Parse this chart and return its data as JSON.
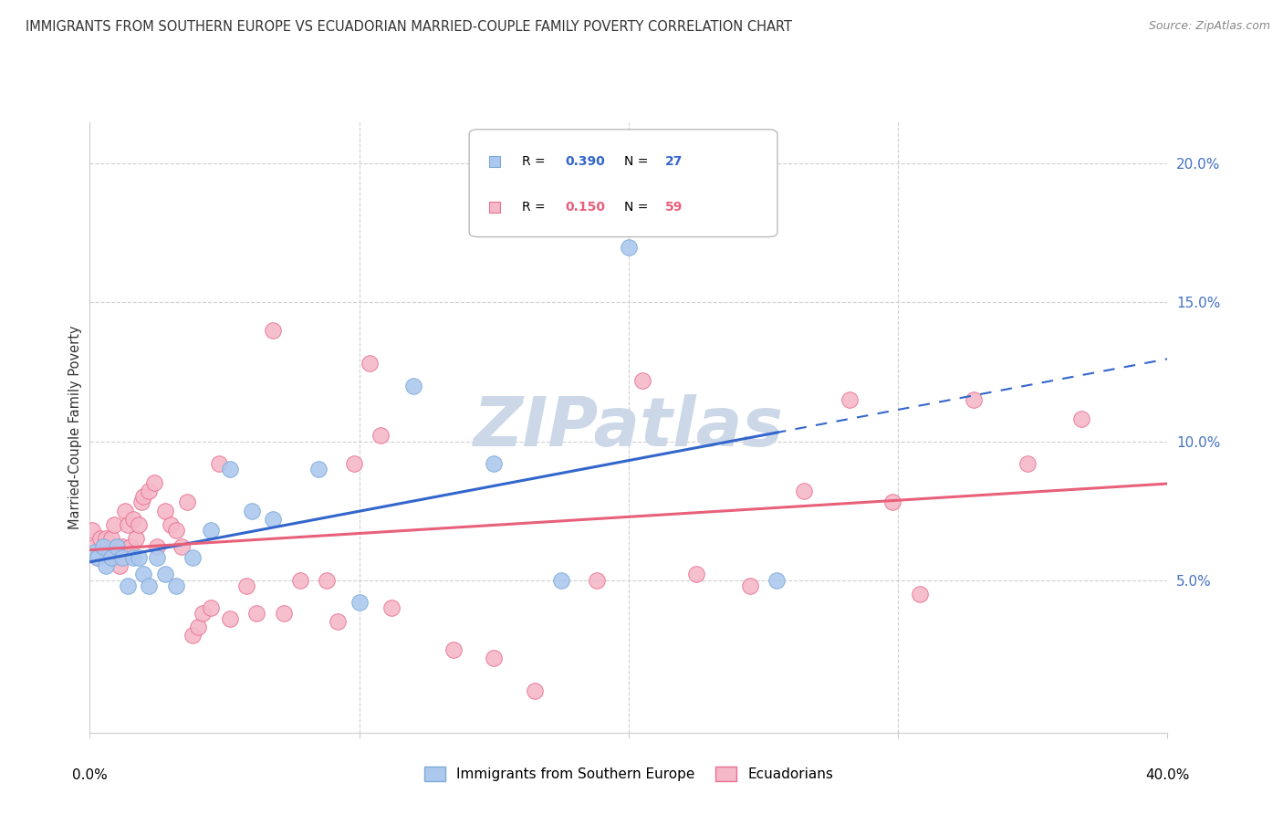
{
  "title": "IMMIGRANTS FROM SOUTHERN EUROPE VS ECUADORIAN MARRIED-COUPLE FAMILY POVERTY CORRELATION CHART",
  "source": "Source: ZipAtlas.com",
  "ylabel": "Married-Couple Family Poverty",
  "yticks": [
    0.0,
    0.05,
    0.1,
    0.15,
    0.2
  ],
  "ytick_labels": [
    "",
    "5.0%",
    "10.0%",
    "15.0%",
    "20.0%"
  ],
  "xlim": [
    0.0,
    0.4
  ],
  "ylim": [
    -0.005,
    0.215
  ],
  "series1_label": "Immigrants from Southern Europe",
  "series1_color": "#adc8ee",
  "series1_edge_color": "#7aaad8",
  "series1_R": "0.390",
  "series1_N": "27",
  "series2_label": "Ecuadorians",
  "series2_color": "#f5b8c8",
  "series2_edge_color": "#e87090",
  "series2_R": "0.150",
  "series2_N": "59",
  "trendline1_color": "#3366cc",
  "trendline2_color": "#e8607a",
  "watermark": "ZIPatlas",
  "watermark_color": "#ccd8e8",
  "blue_scatter_x": [
    0.002,
    0.003,
    0.005,
    0.006,
    0.008,
    0.01,
    0.012,
    0.014,
    0.016,
    0.018,
    0.02,
    0.022,
    0.025,
    0.028,
    0.032,
    0.038,
    0.045,
    0.052,
    0.06,
    0.068,
    0.085,
    0.1,
    0.12,
    0.15,
    0.175,
    0.2,
    0.255
  ],
  "blue_scatter_y": [
    0.06,
    0.058,
    0.062,
    0.055,
    0.058,
    0.062,
    0.058,
    0.048,
    0.058,
    0.058,
    0.052,
    0.048,
    0.058,
    0.052,
    0.048,
    0.058,
    0.068,
    0.09,
    0.075,
    0.072,
    0.09,
    0.042,
    0.12,
    0.092,
    0.05,
    0.17,
    0.05
  ],
  "pink_scatter_x": [
    0.001,
    0.002,
    0.003,
    0.004,
    0.005,
    0.006,
    0.007,
    0.008,
    0.009,
    0.01,
    0.011,
    0.012,
    0.013,
    0.014,
    0.015,
    0.016,
    0.017,
    0.018,
    0.019,
    0.02,
    0.022,
    0.024,
    0.025,
    0.028,
    0.03,
    0.032,
    0.034,
    0.036,
    0.038,
    0.04,
    0.042,
    0.045,
    0.048,
    0.052,
    0.058,
    0.062,
    0.068,
    0.072,
    0.078,
    0.088,
    0.092,
    0.098,
    0.104,
    0.108,
    0.112,
    0.135,
    0.15,
    0.165,
    0.188,
    0.205,
    0.225,
    0.245,
    0.265,
    0.282,
    0.298,
    0.308,
    0.328,
    0.348,
    0.368
  ],
  "pink_scatter_y": [
    0.068,
    0.062,
    0.058,
    0.065,
    0.06,
    0.065,
    0.06,
    0.065,
    0.07,
    0.058,
    0.055,
    0.062,
    0.075,
    0.07,
    0.062,
    0.072,
    0.065,
    0.07,
    0.078,
    0.08,
    0.082,
    0.085,
    0.062,
    0.075,
    0.07,
    0.068,
    0.062,
    0.078,
    0.03,
    0.033,
    0.038,
    0.04,
    0.092,
    0.036,
    0.048,
    0.038,
    0.14,
    0.038,
    0.05,
    0.05,
    0.035,
    0.092,
    0.128,
    0.102,
    0.04,
    0.025,
    0.022,
    0.01,
    0.05,
    0.122,
    0.052,
    0.048,
    0.082,
    0.115,
    0.078,
    0.045,
    0.115,
    0.092,
    0.108
  ]
}
